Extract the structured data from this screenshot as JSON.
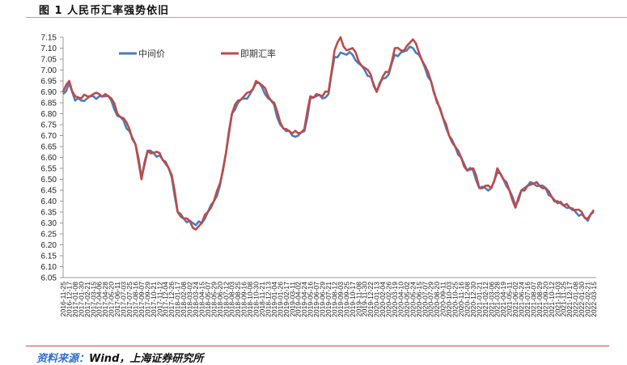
{
  "header": {
    "title": "图 1   人民币汇率强势依旧"
  },
  "footer": {
    "source_label": "资料来源：",
    "source_text": "Wind，上海证券研究所"
  },
  "chart_data": {
    "type": "line",
    "title": "",
    "xlabel": "",
    "ylabel": "",
    "ylim": [
      6.05,
      7.15
    ],
    "yticks": [
      "7.15",
      "7.10",
      "7.05",
      "7.00",
      "6.95",
      "6.90",
      "6.85",
      "6.80",
      "6.75",
      "6.70",
      "6.65",
      "6.60",
      "6.55",
      "6.50",
      "6.45",
      "6.40",
      "6.35",
      "6.30",
      "6.25",
      "6.20",
      "6.15",
      "6.10",
      "6.05"
    ],
    "grid": false,
    "legend": "top-center",
    "x": [
      "2016-11-25",
      "2016-12-17",
      "2017-01-08",
      "2017-01-30",
      "2017-02-21",
      "2017-03-15",
      "2017-04-06",
      "2017-04-28",
      "2017-05-20",
      "2017-06-11",
      "2017-07-03",
      "2017-07-25",
      "2017-08-16",
      "2017-09-07",
      "2017-09-29",
      "2017-10-21",
      "2017-11-12",
      "2017-12-04",
      "2017-12-26",
      "2018-01-17",
      "2018-02-08",
      "2018-03-02",
      "2018-03-24",
      "2018-04-15",
      "2018-05-07",
      "2018-05-29",
      "2018-06-20",
      "2018-07-12",
      "2018-08-03",
      "2018-08-25",
      "2018-09-16",
      "2018-10-08",
      "2018-10-30",
      "2018-11-21",
      "2018-12-13",
      "2019-01-04",
      "2019-01-26",
      "2019-02-17",
      "2019-03-11",
      "2019-04-02",
      "2019-04-24",
      "2019-05-16",
      "2019-06-07",
      "2019-06-29",
      "2019-07-21",
      "2019-08-12",
      "2019-09-03",
      "2019-09-25",
      "2019-10-17",
      "2019-11-08",
      "2019-11-30",
      "2019-12-22",
      "2020-01-13",
      "2020-02-04",
      "2020-02-26",
      "2020-03-19",
      "2020-04-10",
      "2020-05-02",
      "2020-05-24",
      "2020-06-15",
      "2020-07-07",
      "2020-07-29",
      "2020-08-20",
      "2020-09-11",
      "2020-10-03",
      "2020-10-25",
      "2020-11-16",
      "2020-12-08",
      "2020-12-30",
      "2021-01-21",
      "2021-02-12",
      "2021-03-06",
      "2021-03-28",
      "2021-04-19",
      "2021-05-11",
      "2021-06-02",
      "2021-06-24",
      "2021-07-16",
      "2021-08-07",
      "2021-08-29",
      "2021-09-20",
      "2021-10-12",
      "2021-11-03",
      "2021-11-25",
      "2021-12-17",
      "2022-01-08",
      "2022-01-30",
      "2022-02-21",
      "2022-03-15"
    ],
    "series": [
      {
        "name": "中间价",
        "color": "#4a7ebb",
        "values": [
          6.89,
          6.94,
          6.86,
          6.86,
          6.87,
          6.88,
          6.88,
          6.88,
          6.86,
          6.79,
          6.77,
          6.72,
          6.66,
          6.51,
          6.63,
          6.62,
          6.61,
          6.57,
          6.51,
          6.35,
          6.32,
          6.31,
          6.29,
          6.3,
          6.35,
          6.4,
          6.47,
          6.62,
          6.8,
          6.85,
          6.87,
          6.89,
          6.94,
          6.92,
          6.87,
          6.84,
          6.75,
          6.72,
          6.7,
          6.7,
          6.72,
          6.87,
          6.88,
          6.87,
          6.89,
          7.06,
          7.08,
          7.07,
          7.07,
          7.03,
          7.0,
          6.97,
          6.9,
          6.96,
          6.98,
          7.07,
          7.08,
          7.09,
          7.1,
          7.07,
          7.01,
          6.95,
          6.85,
          6.78,
          6.7,
          6.65,
          6.6,
          6.54,
          6.54,
          6.46,
          6.46,
          6.46,
          6.53,
          6.5,
          6.45,
          6.38,
          6.45,
          6.47,
          6.48,
          6.47,
          6.46,
          6.42,
          6.39,
          6.38,
          6.37,
          6.35,
          6.34,
          6.31,
          6.35
        ]
      },
      {
        "name": "即期汇率",
        "color": "#be4b48",
        "values": [
          6.9,
          6.95,
          6.88,
          6.87,
          6.88,
          6.89,
          6.89,
          6.89,
          6.87,
          6.8,
          6.78,
          6.73,
          6.66,
          6.5,
          6.63,
          6.62,
          6.62,
          6.58,
          6.52,
          6.35,
          6.32,
          6.31,
          6.27,
          6.3,
          6.35,
          6.4,
          6.48,
          6.62,
          6.8,
          6.86,
          6.88,
          6.9,
          6.95,
          6.93,
          6.88,
          6.85,
          6.76,
          6.73,
          6.71,
          6.71,
          6.73,
          6.88,
          6.89,
          6.88,
          6.9,
          7.09,
          7.15,
          7.09,
          7.1,
          7.04,
          7.01,
          6.98,
          6.9,
          6.97,
          6.99,
          7.1,
          7.09,
          7.11,
          7.14,
          7.08,
          7.02,
          6.95,
          6.86,
          6.78,
          6.7,
          6.65,
          6.6,
          6.54,
          6.55,
          6.46,
          6.47,
          6.46,
          6.55,
          6.5,
          6.45,
          6.37,
          6.45,
          6.47,
          6.48,
          6.47,
          6.46,
          6.42,
          6.4,
          6.38,
          6.37,
          6.36,
          6.35,
          6.32,
          6.36
        ]
      }
    ]
  }
}
